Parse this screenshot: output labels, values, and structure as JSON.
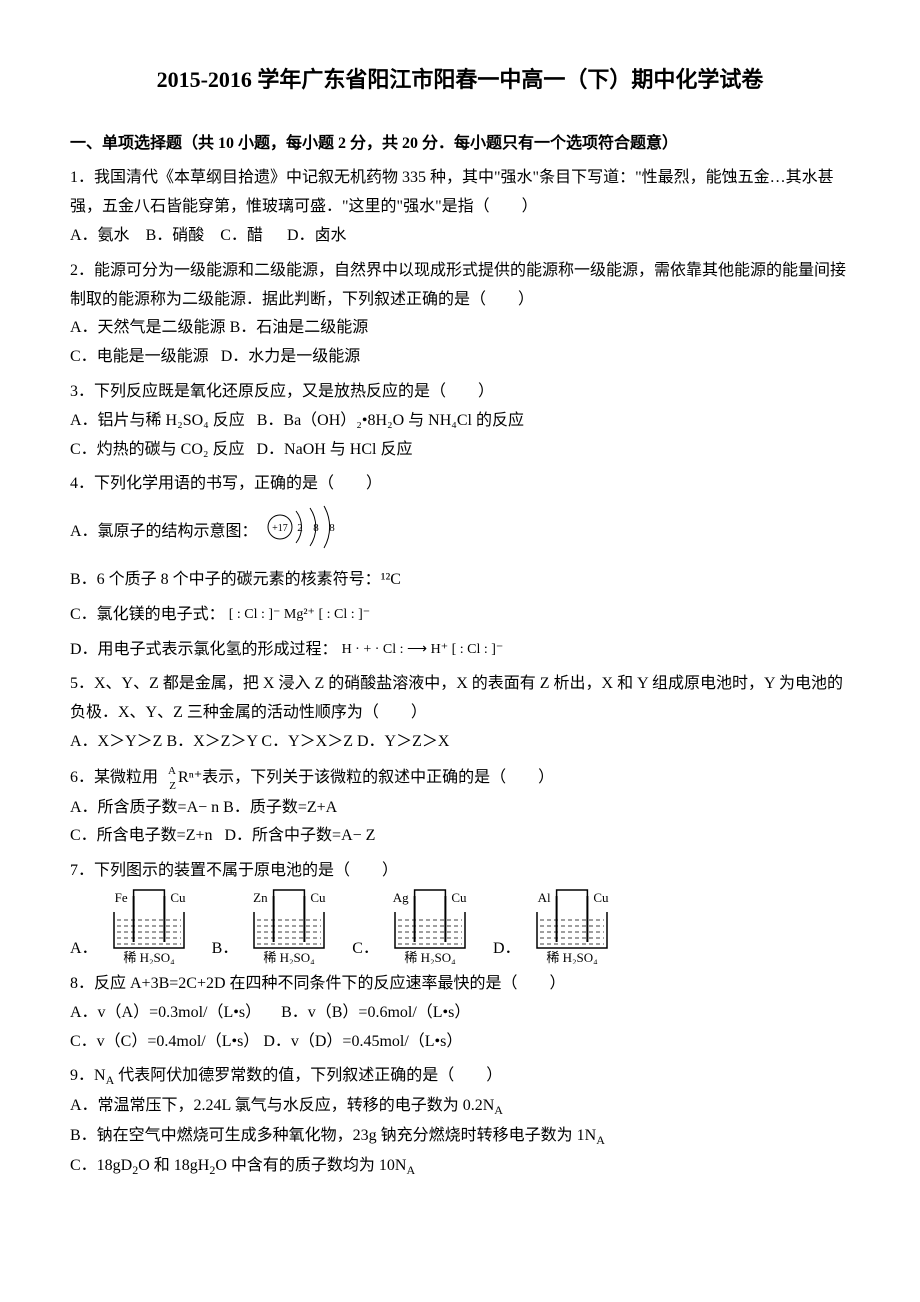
{
  "title": "2015-2016 学年广东省阳江市阳春一中高一（下）期中化学试卷",
  "section1": {
    "header": "一、单项选择题（共 10 小题，每小题 2 分，共 20 分．每小题只有一个选项符合题意）"
  },
  "q1": {
    "stem_a": "1．我国清代《本草纲目拾遗》中记叙无机药物 335 种，其中\"强水\"条目下写道：\"性最烈，能蚀五金…其水甚强，五金八石皆能穿第，惟玻璃可盛．\"这里的\"强水\"是指（　　）",
    "optA": "A．氨水",
    "optB": "B．硝酸",
    "optC": "C．醋",
    "optD": "D．卤水"
  },
  "q2": {
    "stem": "2．能源可分为一级能源和二级能源，自然界中以现成形式提供的能源称一级能源，需依靠其他能源的能量间接制取的能源称为二级能源．据此判断，下列叙述正确的是（　　）",
    "optA": "A．天然气是二级能源",
    "optB": "B．石油是二级能源",
    "optC": "C．电能是一级能源",
    "optD": "D．水力是一级能源"
  },
  "q3": {
    "stem": "3．下列反应既是氧化还原反应，又是放热反应的是（　　）",
    "optA": "A．铝片与稀 H₂SO₄ 反应",
    "optB": "B．Ba（OH）₂•8H₂O 与 NH₄Cl 的反应",
    "optC": "C．灼热的碳与 CO₂ 反应",
    "optD": "D．NaOH 与 HCl 反应"
  },
  "q4": {
    "stem": "4．下列化学用语的书写，正确的是（　　）",
    "optA": "A．氯原子的结构示意图：",
    "optB_pre": "B．6 个质子 8 个中子的碳元素的核素符号：",
    "optB_sym": "¹²C",
    "optC": "C．氯化镁的电子式：",
    "optD": "D．用电子式表示氯化氢的形成过程："
  },
  "q4_svg": {
    "atom": {
      "nucleus_label": "+17",
      "shells": [
        "2",
        "8",
        "8"
      ],
      "stroke": "#000000",
      "fontsize": 11
    },
    "mgcl2": {
      "text": "[ : Cl : ]⁻ Mg²⁺ [ : Cl : ]⁻",
      "fontsize": 14,
      "color": "#000000"
    },
    "hcl": {
      "text": "H · + · Cl : ⟶ H⁺ [ : Cl : ]⁻",
      "fontsize": 14,
      "color": "#000000"
    }
  },
  "q5": {
    "stem": "5．X、Y、Z 都是金属，把 X 浸入 Z 的硝酸盐溶液中，X 的表面有 Z 析出，X 和 Y 组成原电池时，Y 为电池的负极．X、Y、Z 三种金属的活动性顺序为（　　）",
    "optA": "A．X＞Y＞Z",
    "optB": "B．X＞Z＞Y",
    "optC": "C．Y＞X＞Z",
    "optD": "D．Y＞Z＞X"
  },
  "q6": {
    "stem_a": "6．某微粒用 ",
    "stem_b": "Rⁿ⁺表示，下列关于该微粒的叙述中正确的是（　　）",
    "optA": "A．所含质子数=A− n",
    "optB": "B．质子数=Z+A",
    "optC": "C．所含电子数=Z+n",
    "optD": "D．所含中子数=A− Z"
  },
  "q6_svg": {
    "A": "A",
    "Z": "Z",
    "fontsize": 11,
    "color": "#000000"
  },
  "q7": {
    "stem": "7．下列图示的装置不属于原电池的是（　　）",
    "devices": {
      "labels": [
        "A．",
        "B．",
        "C．",
        "D．"
      ],
      "left_electrodes": [
        "Fe",
        "Zn",
        "Ag",
        "Al"
      ],
      "right_electrodes": [
        "Cu",
        "Cu",
        "Cu",
        "Cu"
      ],
      "electrolyte": "稀 H₂SO₄",
      "beaker_stroke": "#000000",
      "liquid_line_color": "#000000",
      "text_fontsize": 13,
      "width": 90,
      "height": 78
    }
  },
  "q8": {
    "stem": "8．反应 A+3B=2C+2D 在四种不同条件下的反应速率最快的是（　　）",
    "optA": "A．v（A）=0.3mol/（L•s）",
    "optB": "B．v（B）=0.6mol/（L•s）",
    "optC": "C．v（C）=0.4mol/（L•s）",
    "optD": "D．v（D）=0.45mol/（L•s）"
  },
  "q9": {
    "stem": "9．N_A 代表阿伏加德罗常数的值，下列叙述正确的是（　　）",
    "optA": "A．常温常压下，2.24L 氯气与水反应，转移的电子数为 0.2N_A",
    "optB": "B．钠在空气中燃烧可生成多种氧化物，23g 钠充分燃烧时转移电子数为 1N_A",
    "optC": "C．18gD₂O 和 18gH₂O 中含有的质子数均为 10N_A"
  }
}
